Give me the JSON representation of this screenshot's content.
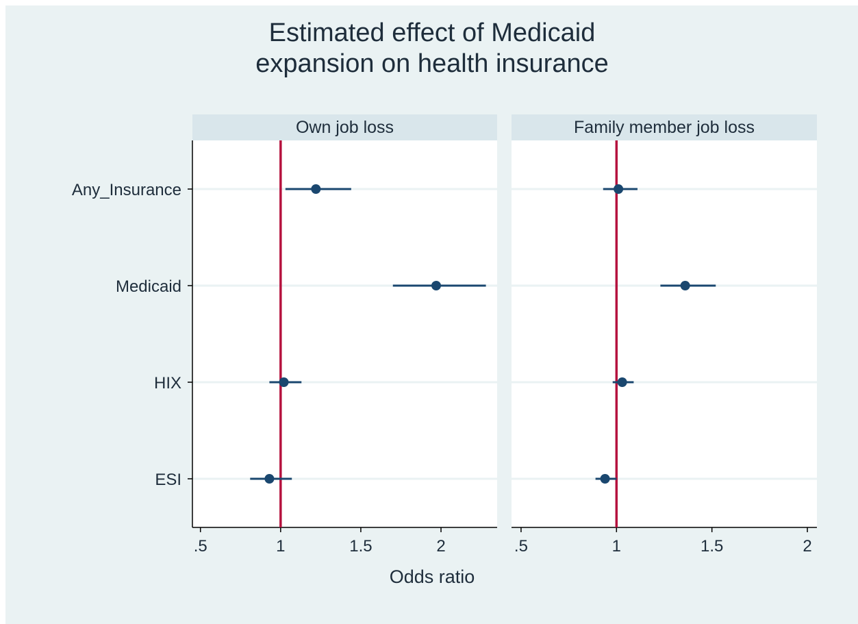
{
  "chart_data": {
    "type": "coefficient-plot",
    "title": [
      "Estimated effect of Medicaid",
      "expansion on health insurance"
    ],
    "xlabel": "Odds ratio",
    "categories": [
      "Any_Insurance",
      "Medicaid",
      "HIX",
      "ESI"
    ],
    "reference_line": 1,
    "colors": {
      "background": "#eaf2f3",
      "panel": "#ffffff",
      "strip": "#d9e6eb",
      "grid": "#eaf2f3",
      "marker": "#1a476f",
      "reference": "#b5123e",
      "text": "#1e2d3b"
    },
    "panels": [
      {
        "title": "Own job loss",
        "xlim": [
          0.45,
          2.35
        ],
        "xticks": [
          0.5,
          1,
          1.5,
          2
        ],
        "xtick_labels": [
          ".5",
          "1",
          "1.5",
          "2"
        ],
        "estimates": [
          {
            "category": "Any_Insurance",
            "or": 1.22,
            "ci": [
              1.03,
              1.44
            ]
          },
          {
            "category": "Medicaid",
            "or": 1.97,
            "ci": [
              1.7,
              2.28
            ]
          },
          {
            "category": "HIX",
            "or": 1.02,
            "ci": [
              0.93,
              1.13
            ]
          },
          {
            "category": "ESI",
            "or": 0.93,
            "ci": [
              0.81,
              1.07
            ]
          }
        ]
      },
      {
        "title": "Family member job loss",
        "xlim": [
          0.45,
          2.05
        ],
        "xticks": [
          0.5,
          1,
          1.5,
          2
        ],
        "xtick_labels": [
          ".5",
          "1",
          "1.5",
          "2"
        ],
        "estimates": [
          {
            "category": "Any_Insurance",
            "or": 1.01,
            "ci": [
              0.93,
              1.11
            ]
          },
          {
            "category": "Medicaid",
            "or": 1.36,
            "ci": [
              1.23,
              1.52
            ]
          },
          {
            "category": "HIX",
            "or": 1.03,
            "ci": [
              0.98,
              1.09
            ]
          },
          {
            "category": "ESI",
            "or": 0.94,
            "ci": [
              0.89,
              1.0
            ]
          }
        ]
      }
    ]
  }
}
